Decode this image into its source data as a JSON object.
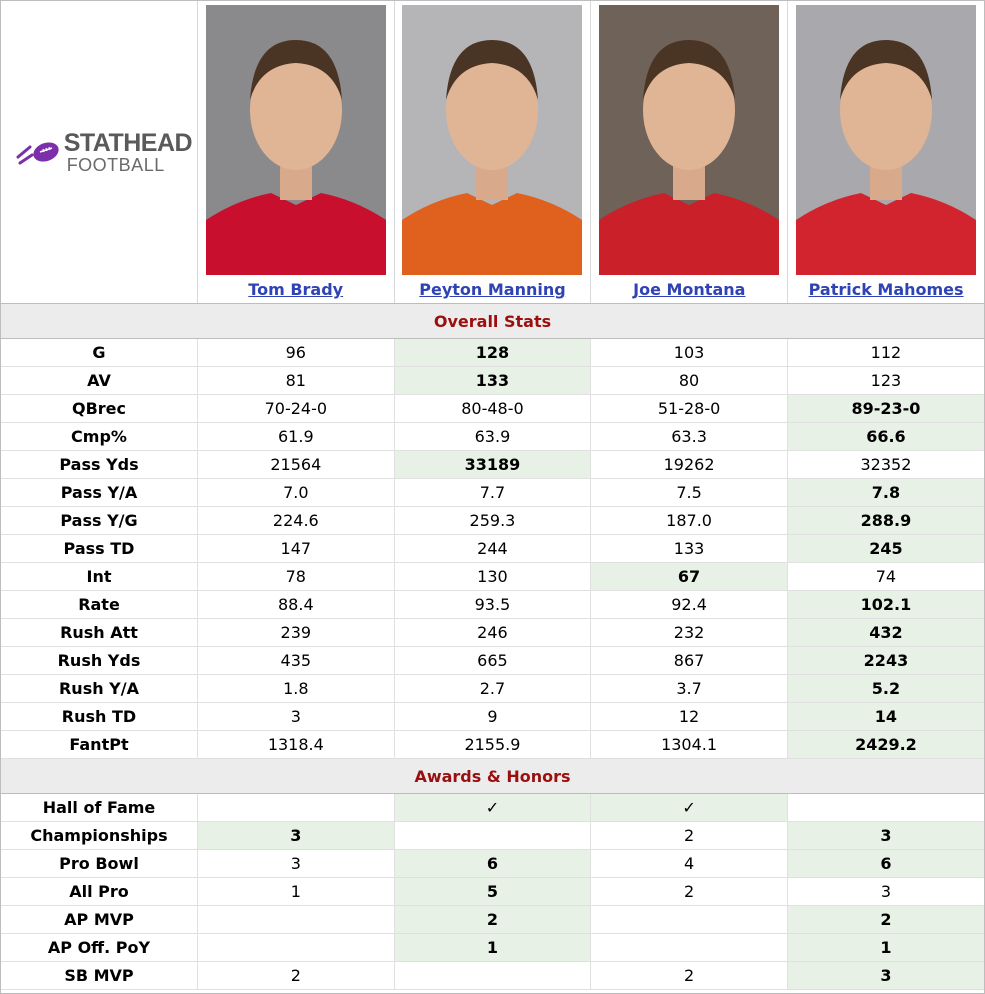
{
  "logo": {
    "line1": "STATHEAD",
    "line2": "FOOTBALL"
  },
  "players": [
    {
      "name": "Tom Brady",
      "jersey": "#c8102e",
      "bg": "#8a8a8d"
    },
    {
      "name": "Peyton Manning",
      "jersey": "#e0601e",
      "bg": "#b5b5b8"
    },
    {
      "name": "Joe Montana",
      "jersey": "#c9202a",
      "bg": "#6f6258"
    },
    {
      "name": "Patrick Mahomes",
      "jersey": "#d2242e",
      "bg": "#a9a9ad"
    }
  ],
  "sections": [
    {
      "title": "Overall Stats",
      "rows": [
        {
          "label": "G",
          "values": [
            "96",
            "128",
            "103",
            "112"
          ],
          "best": [
            1
          ]
        },
        {
          "label": "AV",
          "values": [
            "81",
            "133",
            "80",
            "123"
          ],
          "best": [
            1
          ]
        },
        {
          "label": "QBrec",
          "values": [
            "70-24-0",
            "80-48-0",
            "51-28-0",
            "89-23-0"
          ],
          "best": [
            3
          ]
        },
        {
          "label": "Cmp%",
          "values": [
            "61.9",
            "63.9",
            "63.3",
            "66.6"
          ],
          "best": [
            3
          ]
        },
        {
          "label": "Pass Yds",
          "values": [
            "21564",
            "33189",
            "19262",
            "32352"
          ],
          "best": [
            1
          ]
        },
        {
          "label": "Pass Y/A",
          "values": [
            "7.0",
            "7.7",
            "7.5",
            "7.8"
          ],
          "best": [
            3
          ]
        },
        {
          "label": "Pass Y/G",
          "values": [
            "224.6",
            "259.3",
            "187.0",
            "288.9"
          ],
          "best": [
            3
          ]
        },
        {
          "label": "Pass TD",
          "values": [
            "147",
            "244",
            "133",
            "245"
          ],
          "best": [
            3
          ]
        },
        {
          "label": "Int",
          "values": [
            "78",
            "130",
            "67",
            "74"
          ],
          "best": [
            2
          ]
        },
        {
          "label": "Rate",
          "values": [
            "88.4",
            "93.5",
            "92.4",
            "102.1"
          ],
          "best": [
            3
          ]
        },
        {
          "label": "Rush Att",
          "values": [
            "239",
            "246",
            "232",
            "432"
          ],
          "best": [
            3
          ]
        },
        {
          "label": "Rush Yds",
          "values": [
            "435",
            "665",
            "867",
            "2243"
          ],
          "best": [
            3
          ]
        },
        {
          "label": "Rush Y/A",
          "values": [
            "1.8",
            "2.7",
            "3.7",
            "5.2"
          ],
          "best": [
            3
          ]
        },
        {
          "label": "Rush TD",
          "values": [
            "3",
            "9",
            "12",
            "14"
          ],
          "best": [
            3
          ]
        },
        {
          "label": "FantPt",
          "values": [
            "1318.4",
            "2155.9",
            "1304.1",
            "2429.2"
          ],
          "best": [
            3
          ]
        }
      ]
    },
    {
      "title": "Awards & Honors",
      "rows": [
        {
          "label": "Hall of Fame",
          "values": [
            "",
            "✓",
            "✓",
            ""
          ],
          "best": [
            1,
            2
          ]
        },
        {
          "label": "Championships",
          "values": [
            "3",
            "",
            "2",
            "3"
          ],
          "best": [
            0,
            3
          ]
        },
        {
          "label": "Pro Bowl",
          "values": [
            "3",
            "6",
            "4",
            "6"
          ],
          "best": [
            1,
            3
          ]
        },
        {
          "label": "All Pro",
          "values": [
            "1",
            "5",
            "2",
            "3"
          ],
          "best": [
            1
          ]
        },
        {
          "label": "AP MVP",
          "values": [
            "",
            "2",
            "",
            "2"
          ],
          "best": [
            1,
            3
          ]
        },
        {
          "label": "AP Off. PoY",
          "values": [
            "",
            "1",
            "",
            "1"
          ],
          "best": [
            1,
            3
          ]
        },
        {
          "label": "SB MVP",
          "values": [
            "2",
            "",
            "2",
            "3"
          ],
          "best": [
            3
          ]
        }
      ]
    }
  ]
}
